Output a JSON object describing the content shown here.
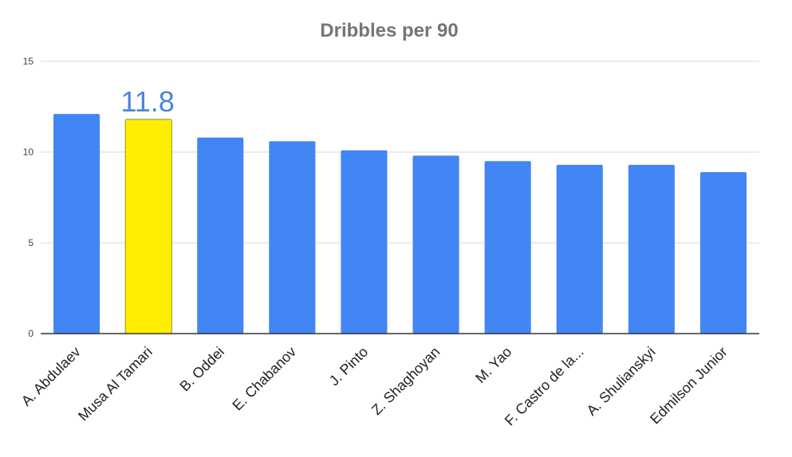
{
  "chart_data": {
    "type": "bar",
    "title": "Dribbles per 90",
    "xlabel": "",
    "ylabel": "",
    "ylim": [
      0,
      15
    ],
    "yticks": [
      0,
      5,
      10,
      15
    ],
    "grid": true,
    "legend": "none",
    "categories": [
      "A. Abdulaev",
      "Musa Al Tamari",
      "B. Oddei",
      "E. Chabanov",
      "J. Pinto",
      "Z. Shaghoyan",
      "M. Yao",
      "F. Castro de la...",
      "A. Shulianskyi",
      "Edmilson Junior"
    ],
    "values": [
      12.1,
      11.8,
      10.8,
      10.6,
      10.1,
      9.8,
      9.5,
      9.3,
      9.3,
      8.9
    ],
    "highlight_index": 1,
    "annotations": [
      {
        "category_index": 1,
        "text": "11.8"
      }
    ]
  },
  "colors": {
    "bar": "#4285f4",
    "highlight": "#ffee00",
    "highlight_border": "#7a7a00",
    "title": "#757575",
    "tick_text": "#444444",
    "category_text": "#222222",
    "grid": "#d9d9d9",
    "axis": "#333333",
    "annotation": "#4a86d8"
  }
}
